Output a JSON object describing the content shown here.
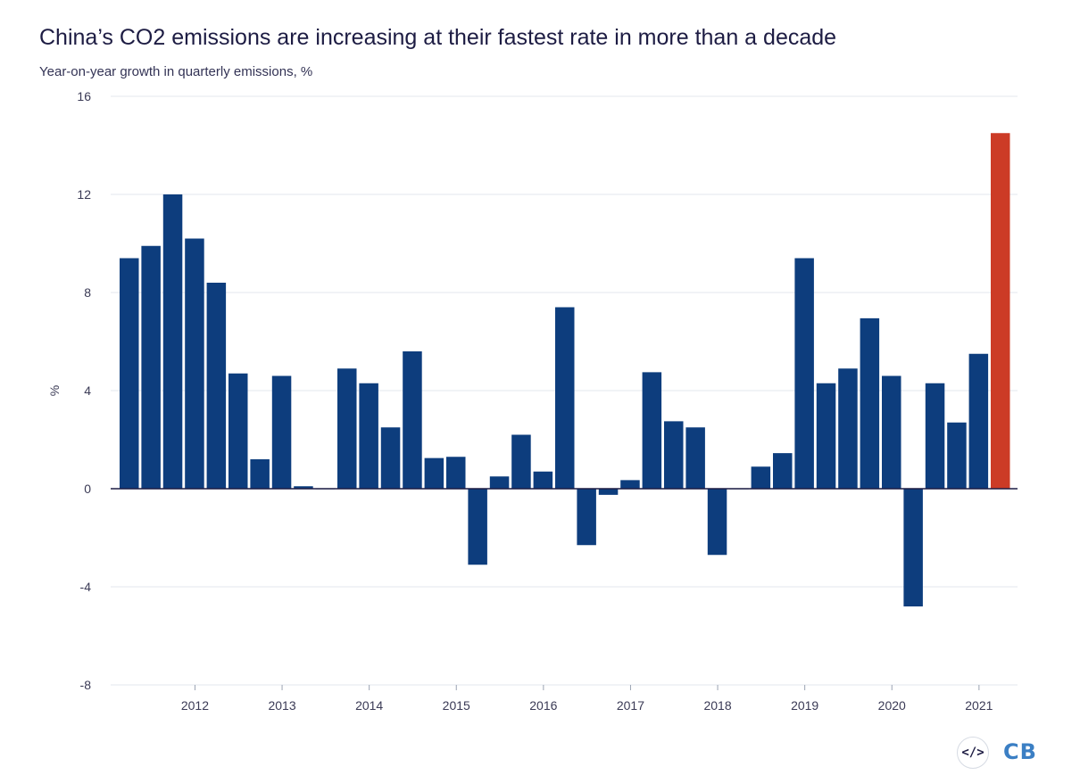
{
  "title": "China’s CO2 emissions are increasing at their fastest rate in more than a decade",
  "subtitle": "Year-on-year growth in quarterly emissions, %",
  "logo": {
    "icon": "code-icon",
    "glyph": "</>",
    "text": "CB"
  },
  "colors": {
    "bar": "#0d3d7d",
    "highlight": "#cc3b26",
    "grid": "#e3e7ee",
    "zero_line": "#1d1c43"
  },
  "chart_data": {
    "type": "bar",
    "title": "China’s CO2 emissions are increasing at their fastest rate in more than a decade",
    "subtitle": "Year-on-year growth in quarterly emissions, %",
    "xlabel": "",
    "ylabel": "%",
    "ylim": [
      -8,
      16
    ],
    "yticks": [
      -8,
      -4,
      0,
      4,
      8,
      12,
      16
    ],
    "grid": true,
    "x_tick_labels": [
      "2012",
      "2013",
      "2014",
      "2015",
      "2016",
      "2017",
      "2018",
      "2019",
      "2020",
      "2021"
    ],
    "x_tick_quarter_index": [
      3.5,
      7.5,
      11.5,
      15.5,
      19.5,
      23.5,
      27.5,
      31.5,
      35.5,
      39.5
    ],
    "values": [
      9.4,
      9.9,
      12.0,
      10.2,
      8.4,
      4.7,
      1.2,
      4.6,
      0.1,
      0.0,
      4.9,
      4.3,
      2.5,
      5.6,
      1.25,
      1.3,
      -3.1,
      0.5,
      2.2,
      0.7,
      7.4,
      -2.3,
      -0.25,
      0.35,
      4.75,
      2.75,
      2.5,
      -2.7,
      0.0,
      0.9,
      1.45,
      9.4,
      4.3,
      4.9,
      6.95,
      4.6,
      -4.8,
      4.3,
      2.7,
      5.5,
      14.5
    ],
    "highlight_index": 40
  }
}
